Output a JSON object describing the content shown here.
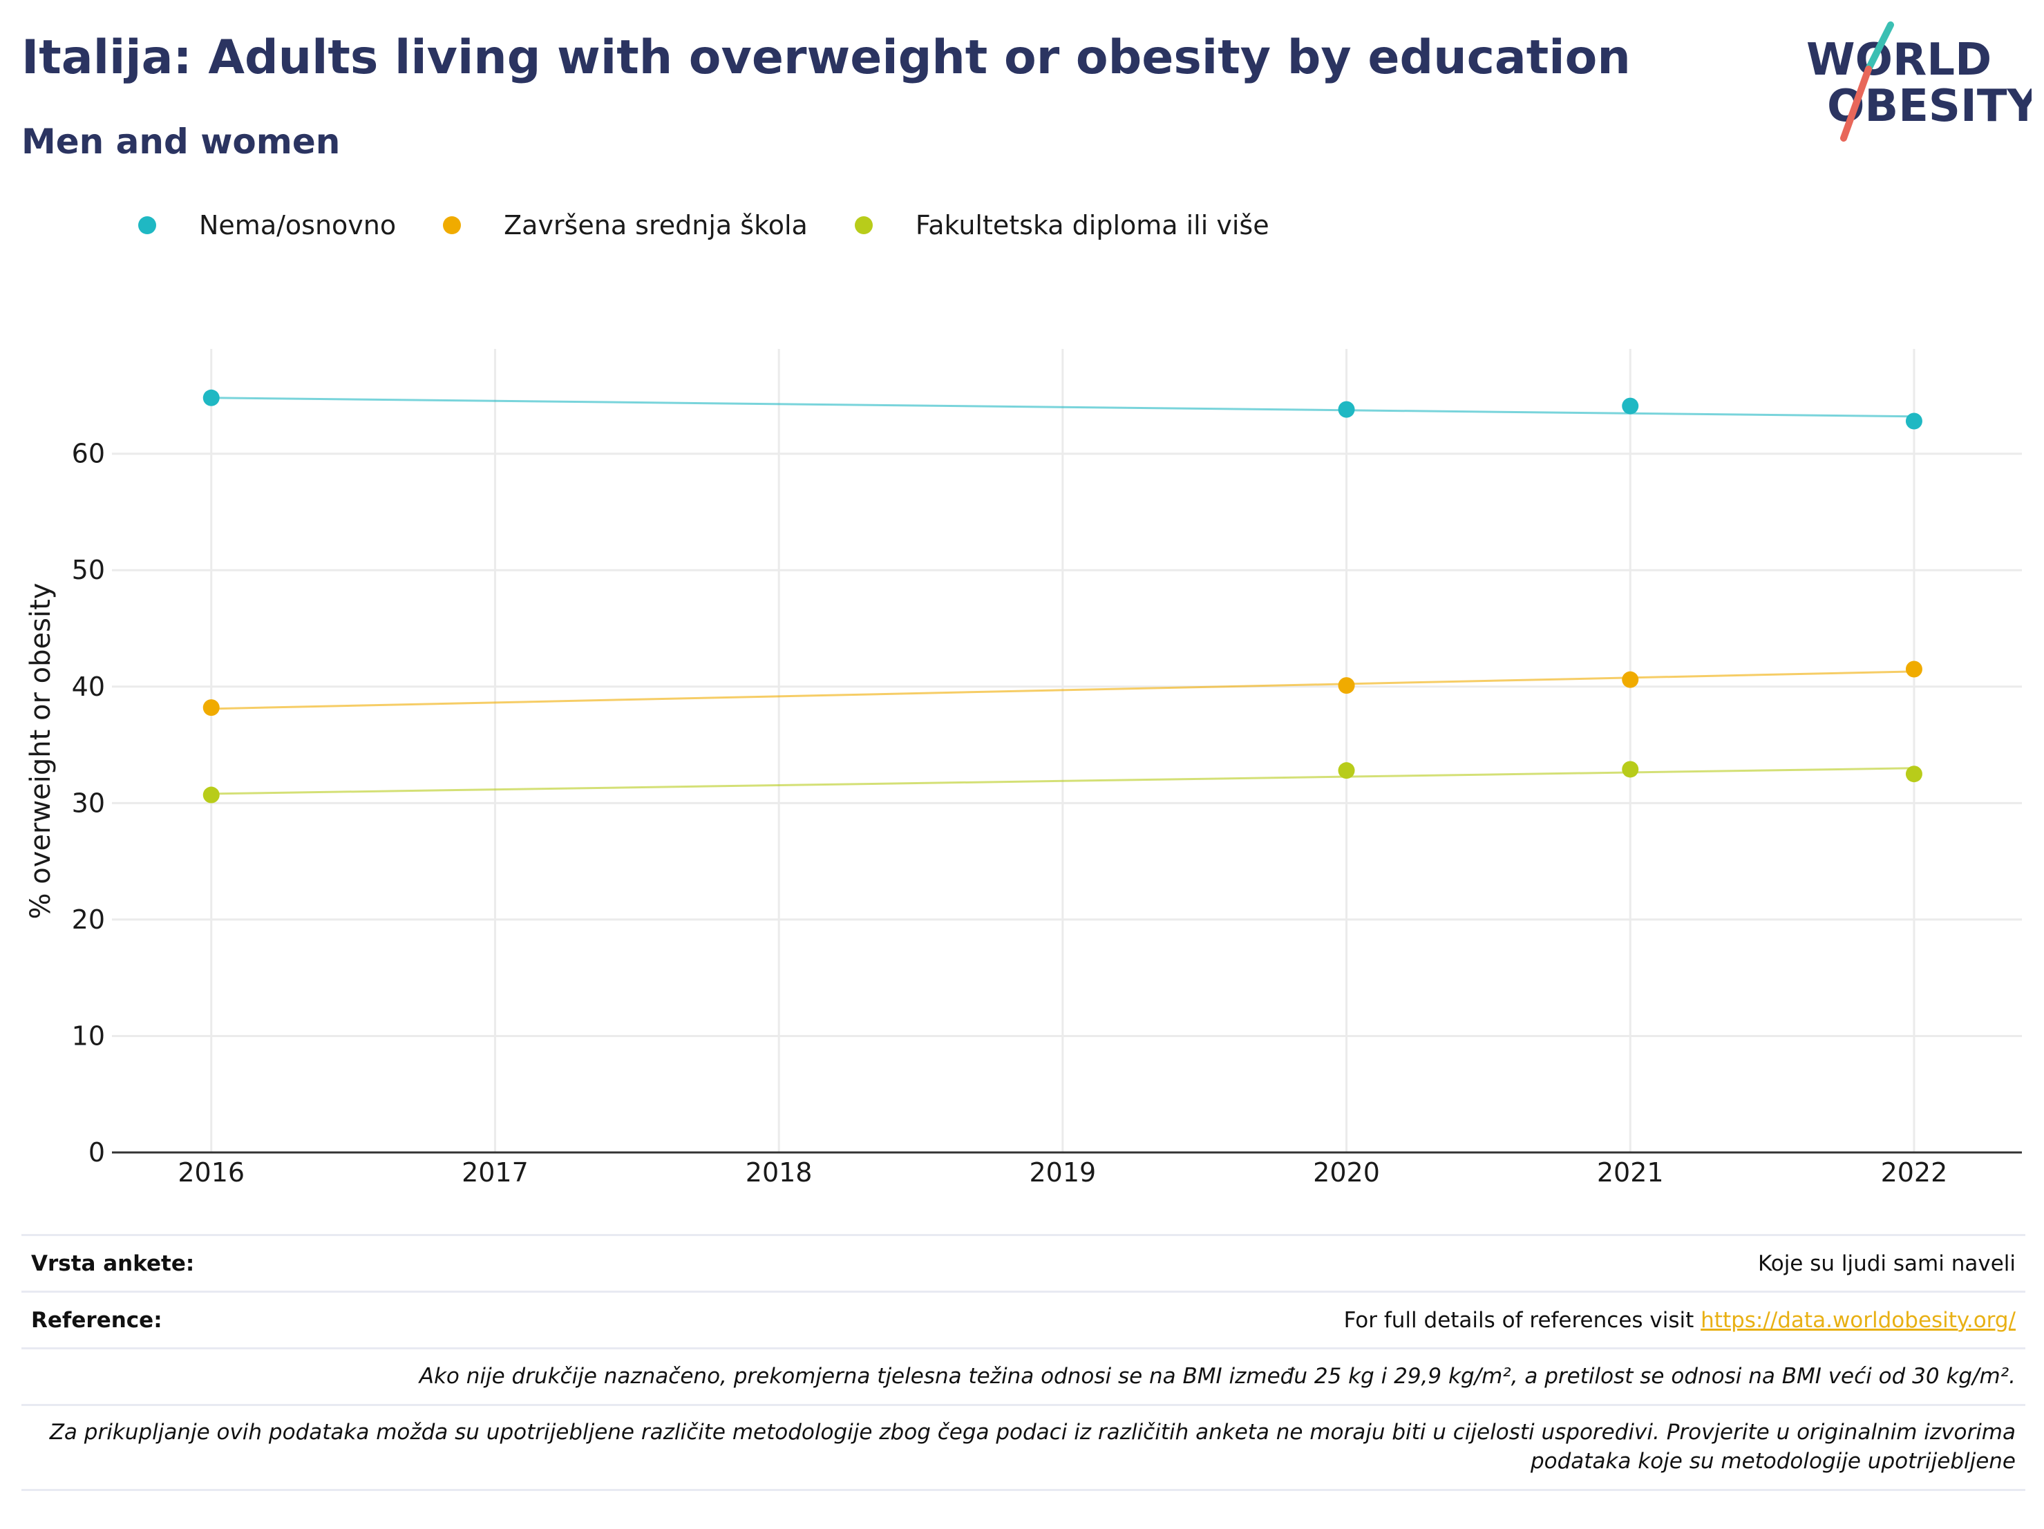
{
  "header": {
    "title": "Italija: Adults living with overweight or obesity by education",
    "subtitle": "Men and women"
  },
  "logo": {
    "line1": "WORLD",
    "line2": "OBESITY",
    "accent_colors": [
      "#3bbfb3",
      "#e8675a"
    ],
    "text_color": "#2b3461"
  },
  "chart_data": {
    "type": "line",
    "x": [
      2016,
      2020,
      2021,
      2022
    ],
    "xticks": [
      2016,
      2017,
      2018,
      2019,
      2020,
      2021,
      2022
    ],
    "xlim": [
      2015.65,
      2022.38
    ],
    "ylabel": "% overweight or obesity",
    "yticks": [
      0,
      10,
      20,
      30,
      40,
      50,
      60
    ],
    "ylim": [
      0,
      69
    ],
    "grid": true,
    "legend_position": "top-left",
    "series": [
      {
        "name": "Nema/osnovno",
        "color": "#1fb8c3",
        "values": [
          64.8,
          63.8,
          64.1,
          62.8
        ],
        "trend": [
          64.8,
          63.2
        ]
      },
      {
        "name": "Završena srednja škola",
        "color": "#f0ab00",
        "values": [
          38.2,
          40.1,
          40.6,
          41.5
        ],
        "trend": [
          38.1,
          41.3
        ]
      },
      {
        "name": "Fakultetska diploma ili više",
        "color": "#b8cc1a",
        "values": [
          30.7,
          32.8,
          32.9,
          32.5
        ],
        "trend": [
          30.8,
          33.0
        ]
      }
    ]
  },
  "footer": {
    "survey_label": "Vrsta ankete:",
    "survey_value": "Koje su ljudi sami naveli",
    "reference_label": "Reference:",
    "reference_text": "For full details of references visit ",
    "reference_link": "https://data.worldobesity.org/",
    "note1": "Ako nije drukčije naznačeno, prekomjerna tjelesna težina odnosi se na BMI između 25 kg i 29,9 kg/m², a pretilost se odnosi na BMI veći od 30 kg/m².",
    "note2": "Za prikupljanje ovih podataka možda su upotrijebljene različite metodologije zbog čega podaci iz različitih anketa ne moraju biti u cijelosti usporedivi. Provjerite u originalnim izvorima podataka koje su metodologije upotrijebljene"
  }
}
